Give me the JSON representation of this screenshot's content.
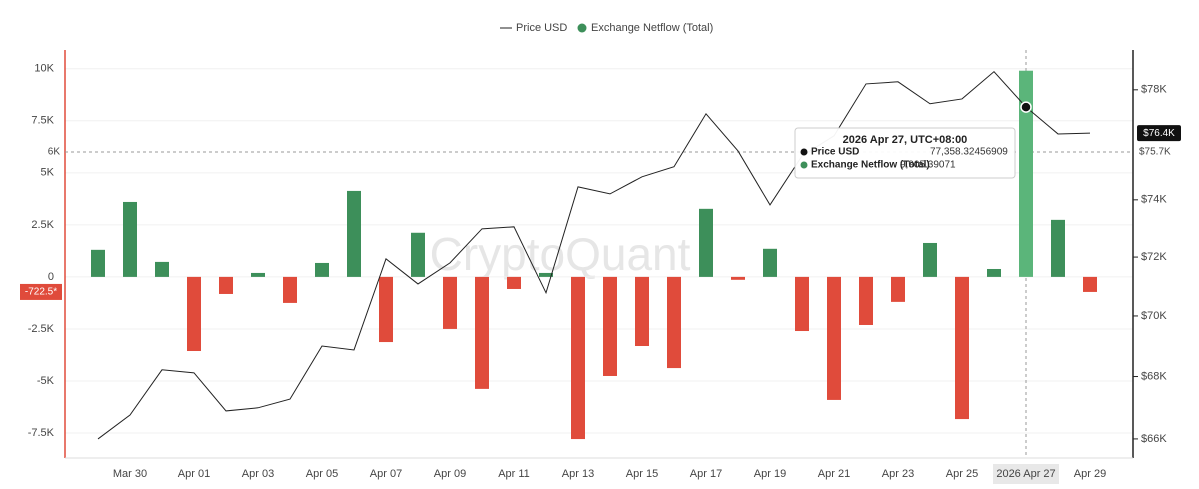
{
  "chart_data": {
    "type": "bar-line",
    "watermark": "CryptoQuant",
    "categories": [
      null,
      "Mar 30",
      null,
      "Apr 01",
      null,
      "Apr 03",
      null,
      "Apr 05",
      null,
      "Apr 07",
      null,
      "Apr 09",
      null,
      "Apr 11",
      null,
      "Apr 13",
      null,
      "Apr 15",
      null,
      "Apr 17",
      null,
      "Apr 19",
      null,
      "Apr 21",
      null,
      "Apr 23",
      null,
      "Apr 25",
      null,
      "2026 Apr 27",
      null,
      "Apr 29"
    ],
    "series": [
      {
        "name": "Price USD",
        "type": "line",
        "axis": "y2",
        "color": "#222222",
        "last_value_label": "$76.4K",
        "values": [
          66000,
          66760,
          68220,
          68120,
          66890,
          66990,
          67270,
          69000,
          68870,
          71940,
          71080,
          71800,
          72980,
          73050,
          70780,
          74460,
          74210,
          74820,
          75180,
          77110,
          75750,
          73820,
          75570,
          76300,
          78220,
          78300,
          77480,
          77660,
          78680,
          77358.32456909,
          76370,
          76400
        ]
      },
      {
        "name": "Exchange Netflow (Total)",
        "type": "bar",
        "color": "#3d8f5a",
        "negative_color": "#e04b3b",
        "highlight_color": "#5bb57a",
        "last_value_label": "-722.5*",
        "values": [
          1300,
          3600,
          720,
          -3560,
          -820,
          190,
          -1250,
          670,
          4130,
          -3130,
          2120,
          -2500,
          -5380,
          -580,
          190,
          -7790,
          -4760,
          -3320,
          -4380,
          3270,
          -140,
          1350,
          -2600,
          -5910,
          -2310,
          -1200,
          1630,
          -6830,
          380,
          9905.39071,
          2740,
          -722.5
        ]
      }
    ],
    "ylim": [
      -8700,
      10900
    ],
    "yticks": [
      {
        "value": -7500,
        "label": "-7.5K"
      },
      {
        "value": -5000,
        "label": "-5K"
      },
      {
        "value": -2500,
        "label": "-2.5K"
      },
      0,
      {
        "value": 2500,
        "label": "2.5K"
      },
      {
        "value": 5000,
        "label": "5K"
      },
      {
        "value": 7500,
        "label": "7.5K"
      },
      {
        "value": 10000,
        "label": "10K"
      }
    ],
    "y2lim": [
      65400,
      79500
    ],
    "y2scale": "log",
    "y2ticks": [
      {
        "value": 66000,
        "label": "$66K"
      },
      {
        "value": 68000,
        "label": "$68K"
      },
      {
        "value": 70000,
        "label": "$70K"
      },
      {
        "value": 72000,
        "label": "$72K"
      },
      {
        "value": 74000,
        "label": "$74K"
      },
      {
        "value": 78000,
        "label": "$78K"
      }
    ],
    "grid": true,
    "legend": "top",
    "crosshair": {
      "value": 6000,
      "label": "6K",
      "y2_label": "$75.7K"
    },
    "tooltip": {
      "title": "2026 Apr 27, UTC+08:00",
      "values": [
        "77,358.32456909",
        "9,905.39071"
      ]
    }
  }
}
